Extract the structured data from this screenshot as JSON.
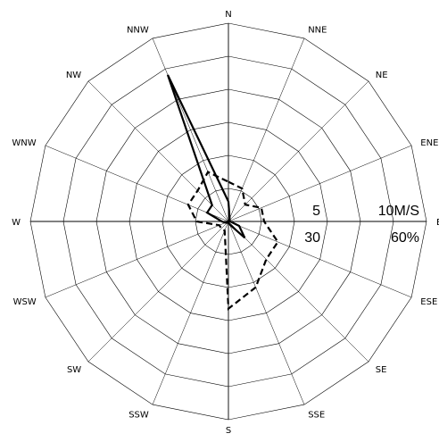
{
  "chart_data": {
    "type": "wind-rose",
    "directions": [
      "N",
      "NNE",
      "NE",
      "ENE",
      "E",
      "ESE",
      "SE",
      "SSE",
      "S",
      "SSW",
      "SW",
      "WSW",
      "W",
      "WNW",
      "NW",
      "NNW"
    ],
    "ring_count": 6,
    "ring_labels": [
      {
        "top": "5",
        "bottom": "30",
        "ring": 3
      },
      {
        "top": "10M/S",
        "bottom": "60%",
        "ring": 6
      }
    ],
    "scales": {
      "speed_max_mps": 10,
      "frequency_max_pct": 60
    },
    "series": [
      {
        "style": "solid",
        "scale": "frequency",
        "values": [
          6,
          1,
          0.5,
          0.5,
          0.5,
          3.5,
          7,
          1,
          0.5,
          0.5,
          0.5,
          1,
          2,
          7,
          7,
          48
        ]
      },
      {
        "style": "dashed",
        "scale": "speed",
        "values": [
          2,
          1.8,
          1.2,
          1.8,
          1.8,
          2.7,
          2.7,
          3.6,
          4.4,
          0.5,
          0.5,
          0.5,
          1.6,
          2.2,
          2.2,
          2.7
        ]
      }
    ]
  }
}
